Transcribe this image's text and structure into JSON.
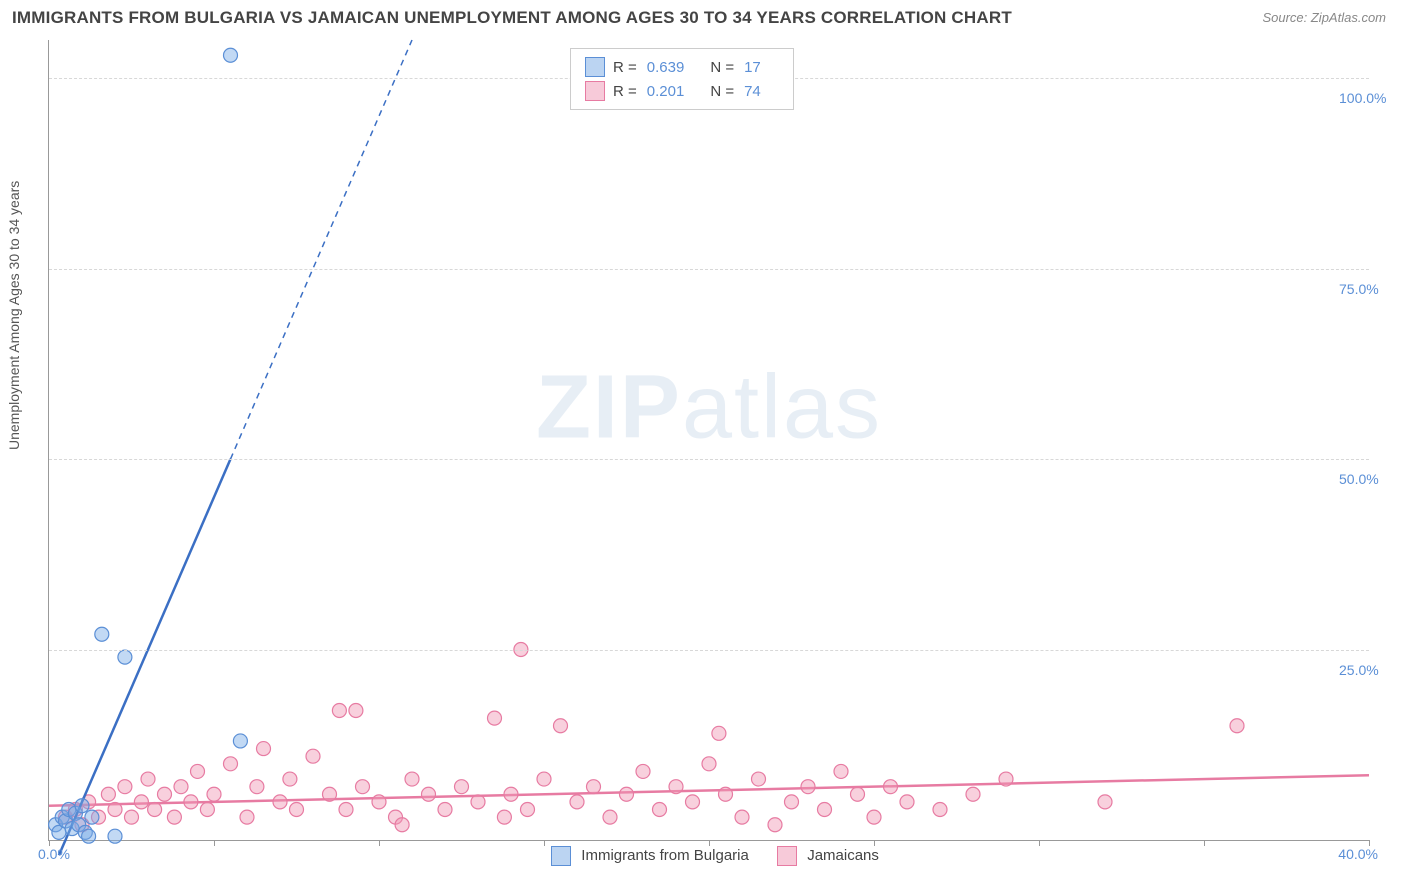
{
  "title": "IMMIGRANTS FROM BULGARIA VS JAMAICAN UNEMPLOYMENT AMONG AGES 30 TO 34 YEARS CORRELATION CHART",
  "source": "Source: ZipAtlas.com",
  "y_axis_label": "Unemployment Among Ages 30 to 34 years",
  "watermark_bold": "ZIP",
  "watermark_rest": "atlas",
  "chart": {
    "type": "scatter",
    "xlim": [
      0,
      40
    ],
    "ylim": [
      0,
      105
    ],
    "x_ticks": [
      0,
      5,
      10,
      15,
      20,
      25,
      30,
      35,
      40
    ],
    "y_gridlines": [
      25,
      50,
      75,
      100
    ],
    "y_tick_labels": [
      "25.0%",
      "50.0%",
      "75.0%",
      "100.0%"
    ],
    "x_label_0": "0.0%",
    "x_label_40": "40.0%",
    "background_color": "#ffffff",
    "grid_color": "#d8d8d8",
    "axis_color": "#999999",
    "tick_label_color": "#5b8fd6",
    "series": [
      {
        "name": "Immigrants from Bulgaria",
        "marker_fill": "rgba(120,170,230,0.45)",
        "marker_stroke": "#5b8fd6",
        "marker_radius": 7,
        "line_color": "#3b6fc4",
        "line_dash_color": "#3b6fc4",
        "R": "0.639",
        "N": "17",
        "trend": {
          "x1": 0.3,
          "y1": -2,
          "x2": 5.5,
          "y2": 50,
          "dash_x2": 11,
          "dash_y2": 105
        },
        "points": [
          [
            0.2,
            2.0
          ],
          [
            0.3,
            1.0
          ],
          [
            0.4,
            3.0
          ],
          [
            0.5,
            2.5
          ],
          [
            0.6,
            4.0
          ],
          [
            0.7,
            1.5
          ],
          [
            0.8,
            3.5
          ],
          [
            0.9,
            2.0
          ],
          [
            1.0,
            4.5
          ],
          [
            1.1,
            1.0
          ],
          [
            1.2,
            0.5
          ],
          [
            1.3,
            3.0
          ],
          [
            1.6,
            27.0
          ],
          [
            2.3,
            24.0
          ],
          [
            5.5,
            103.0
          ],
          [
            5.8,
            13.0
          ],
          [
            2.0,
            0.5
          ]
        ]
      },
      {
        "name": "Jamaicans",
        "marker_fill": "rgba(240,150,180,0.45)",
        "marker_stroke": "#e77ba2",
        "marker_radius": 7,
        "line_color": "#e77ba2",
        "R": "0.201",
        "N": "74",
        "trend": {
          "x1": 0,
          "y1": 4.5,
          "x2": 40,
          "y2": 8.5
        },
        "points": [
          [
            0.5,
            3
          ],
          [
            0.8,
            4
          ],
          [
            1.0,
            2
          ],
          [
            1.2,
            5
          ],
          [
            1.5,
            3
          ],
          [
            1.8,
            6
          ],
          [
            2.0,
            4
          ],
          [
            2.3,
            7
          ],
          [
            2.5,
            3
          ],
          [
            2.8,
            5
          ],
          [
            3.0,
            8
          ],
          [
            3.2,
            4
          ],
          [
            3.5,
            6
          ],
          [
            3.8,
            3
          ],
          [
            4.0,
            7
          ],
          [
            4.3,
            5
          ],
          [
            4.5,
            9
          ],
          [
            4.8,
            4
          ],
          [
            5.0,
            6
          ],
          [
            5.5,
            10
          ],
          [
            6.0,
            3
          ],
          [
            6.3,
            7
          ],
          [
            6.5,
            12
          ],
          [
            7.0,
            5
          ],
          [
            7.3,
            8
          ],
          [
            7.5,
            4
          ],
          [
            8.0,
            11
          ],
          [
            8.5,
            6
          ],
          [
            8.8,
            17
          ],
          [
            9.0,
            4
          ],
          [
            9.3,
            17
          ],
          [
            9.5,
            7
          ],
          [
            10.0,
            5
          ],
          [
            10.5,
            3
          ],
          [
            10.7,
            2
          ],
          [
            11.0,
            8
          ],
          [
            11.5,
            6
          ],
          [
            12.0,
            4
          ],
          [
            12.5,
            7
          ],
          [
            13.0,
            5
          ],
          [
            13.5,
            16
          ],
          [
            13.8,
            3
          ],
          [
            14.0,
            6
          ],
          [
            14.3,
            25
          ],
          [
            14.5,
            4
          ],
          [
            15.0,
            8
          ],
          [
            15.5,
            15
          ],
          [
            16.0,
            5
          ],
          [
            16.5,
            7
          ],
          [
            17.0,
            3
          ],
          [
            17.5,
            6
          ],
          [
            18.0,
            9
          ],
          [
            18.5,
            4
          ],
          [
            19.0,
            7
          ],
          [
            19.5,
            5
          ],
          [
            20.0,
            10
          ],
          [
            20.3,
            14
          ],
          [
            20.5,
            6
          ],
          [
            21.0,
            3
          ],
          [
            21.5,
            8
          ],
          [
            22.0,
            2
          ],
          [
            22.5,
            5
          ],
          [
            23.0,
            7
          ],
          [
            23.5,
            4
          ],
          [
            24.0,
            9
          ],
          [
            24.5,
            6
          ],
          [
            25.0,
            3
          ],
          [
            25.5,
            7
          ],
          [
            26.0,
            5
          ],
          [
            27.0,
            4
          ],
          [
            28.0,
            6
          ],
          [
            29.0,
            8
          ],
          [
            32.0,
            5
          ],
          [
            36.0,
            15
          ]
        ]
      }
    ]
  },
  "legend_top": {
    "R_label": "R =",
    "N_label": "N ="
  },
  "legend_bottom": {
    "series1": "Immigrants from Bulgaria",
    "series2": "Jamaicans"
  }
}
